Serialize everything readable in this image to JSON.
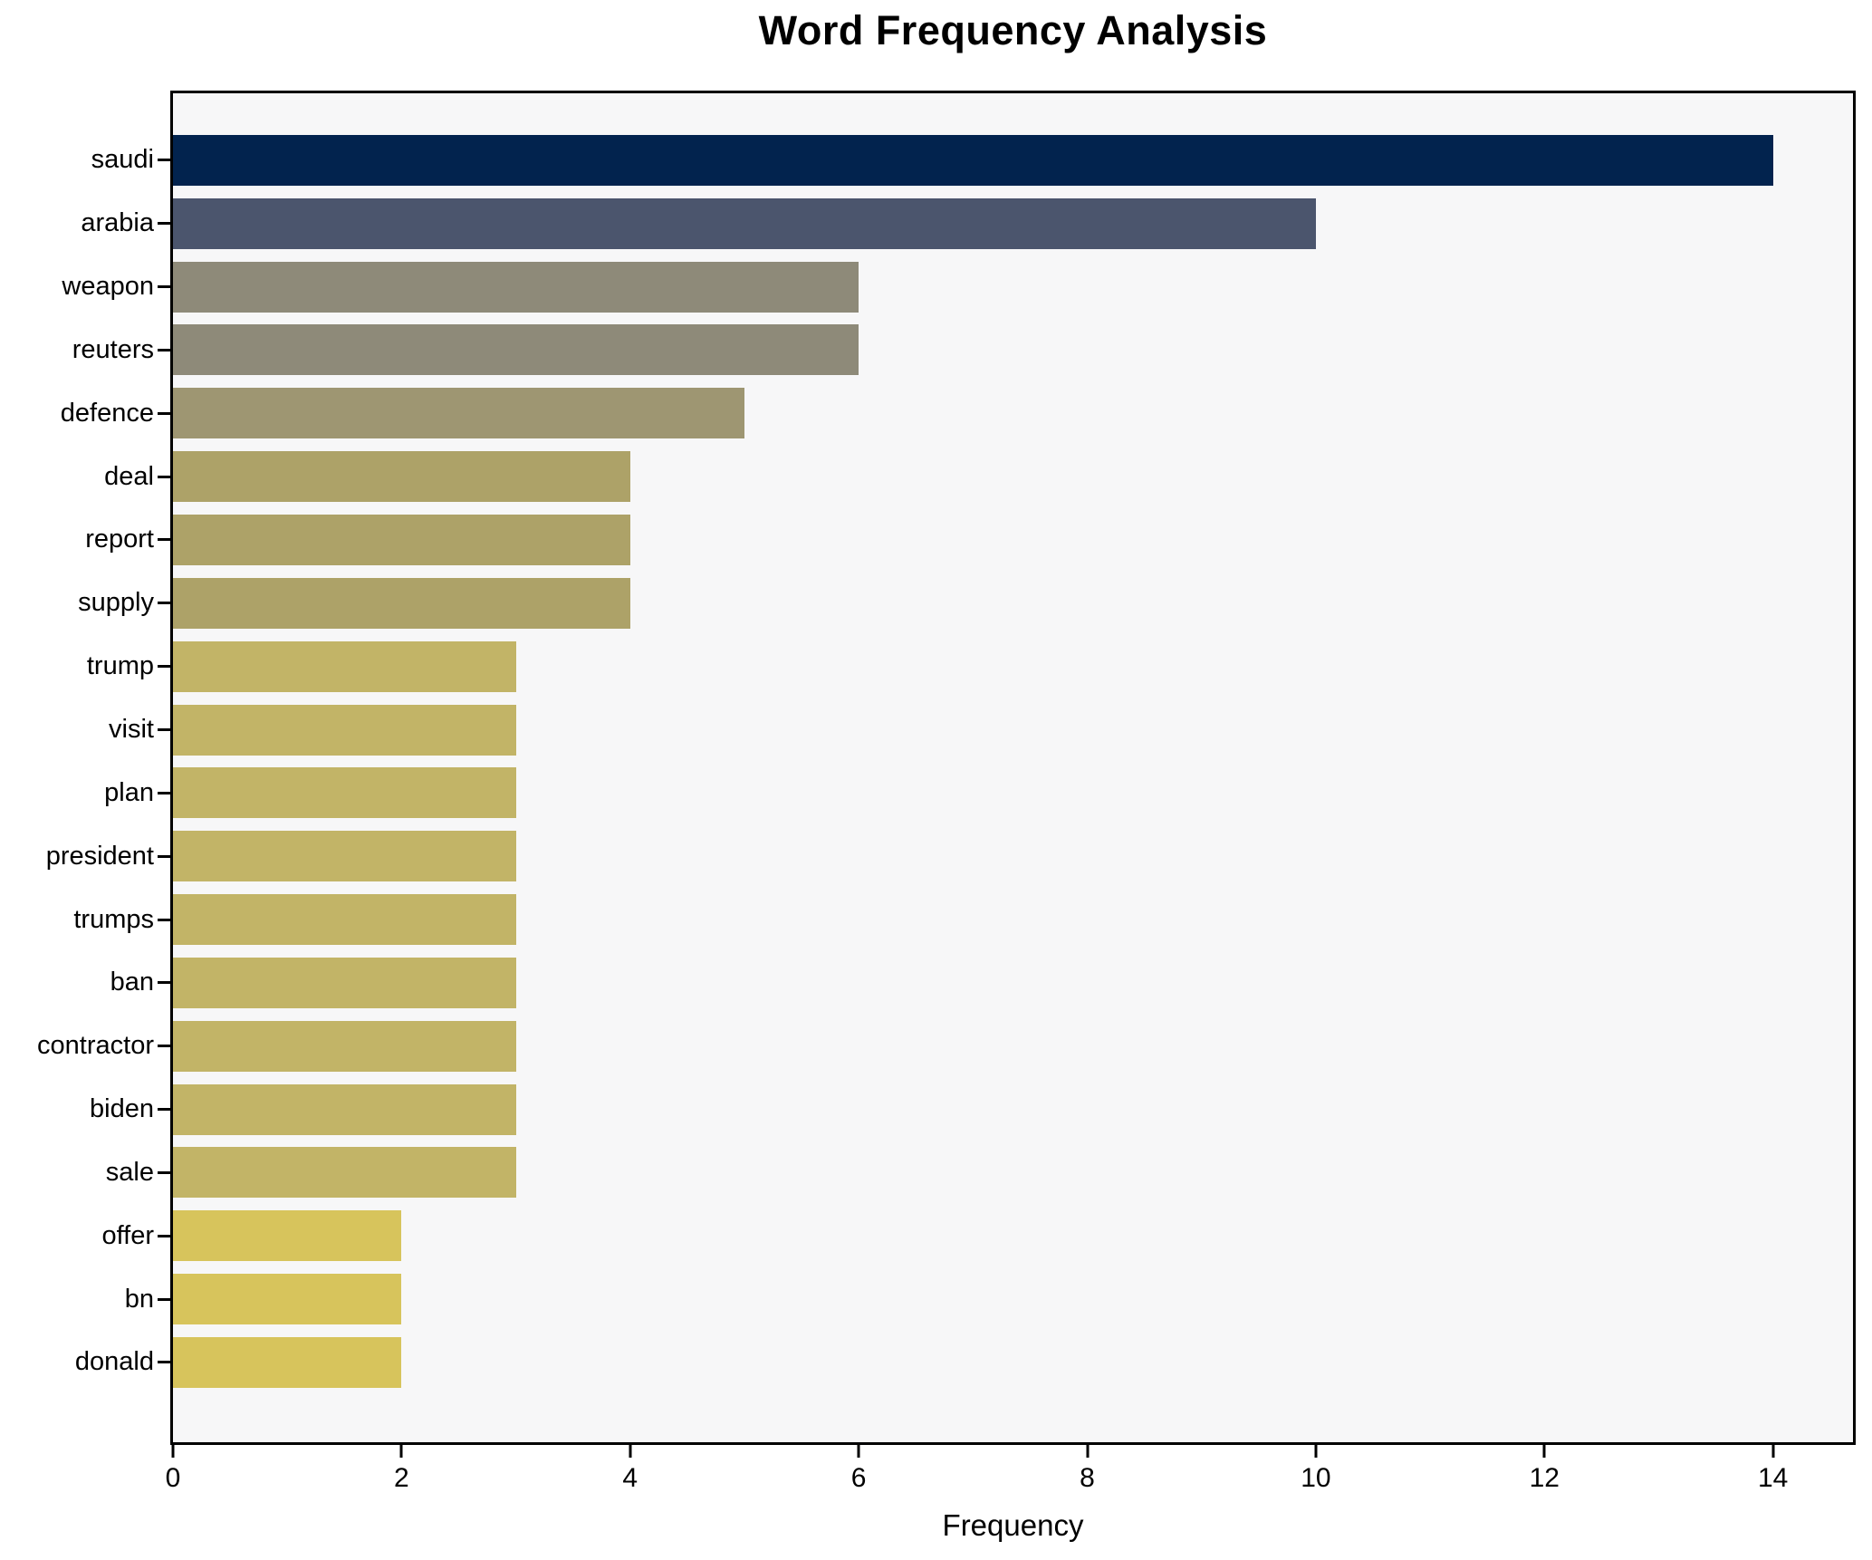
{
  "chart_data": {
    "type": "bar",
    "orientation": "horizontal",
    "title": "Word Frequency Analysis",
    "xlabel": "Frequency",
    "ylabel": "",
    "xlim": [
      0,
      14.7
    ],
    "xticks": [
      0,
      2,
      4,
      6,
      8,
      10,
      12,
      14
    ],
    "grid": false,
    "legend": "none",
    "plot_background": "#f7f7f8",
    "colormap": "cividis-reversed-by-value",
    "categories": [
      "saudi",
      "arabia",
      "weapon",
      "reuters",
      "defence",
      "deal",
      "report",
      "supply",
      "trump",
      "visit",
      "plan",
      "president",
      "trumps",
      "ban",
      "contractor",
      "biden",
      "sale",
      "offer",
      "bn",
      "donald"
    ],
    "values": [
      14,
      10,
      6,
      6,
      5,
      4,
      4,
      4,
      3,
      3,
      3,
      3,
      3,
      3,
      3,
      3,
      3,
      2,
      2,
      2
    ],
    "bars": [
      {
        "label": "saudi",
        "value": 14,
        "color": "#02234e"
      },
      {
        "label": "arabia",
        "value": 10,
        "color": "#4b556d"
      },
      {
        "label": "weapon",
        "value": 6,
        "color": "#8e8a79"
      },
      {
        "label": "reuters",
        "value": 6,
        "color": "#8e8a79"
      },
      {
        "label": "defence",
        "value": 5,
        "color": "#9e9672"
      },
      {
        "label": "deal",
        "value": 4,
        "color": "#ada268"
      },
      {
        "label": "report",
        "value": 4,
        "color": "#ada268"
      },
      {
        "label": "supply",
        "value": 4,
        "color": "#ada268"
      },
      {
        "label": "trump",
        "value": 3,
        "color": "#c2b467"
      },
      {
        "label": "visit",
        "value": 3,
        "color": "#c2b467"
      },
      {
        "label": "plan",
        "value": 3,
        "color": "#c2b467"
      },
      {
        "label": "president",
        "value": 3,
        "color": "#c2b467"
      },
      {
        "label": "trumps",
        "value": 3,
        "color": "#c2b467"
      },
      {
        "label": "ban",
        "value": 3,
        "color": "#c2b467"
      },
      {
        "label": "contractor",
        "value": 3,
        "color": "#c2b467"
      },
      {
        "label": "biden",
        "value": 3,
        "color": "#c2b467"
      },
      {
        "label": "sale",
        "value": 3,
        "color": "#c2b467"
      },
      {
        "label": "offer",
        "value": 2,
        "color": "#d7c45c"
      },
      {
        "label": "bn",
        "value": 2,
        "color": "#d7c45c"
      },
      {
        "label": "donald",
        "value": 2,
        "color": "#d7c45c"
      }
    ]
  }
}
